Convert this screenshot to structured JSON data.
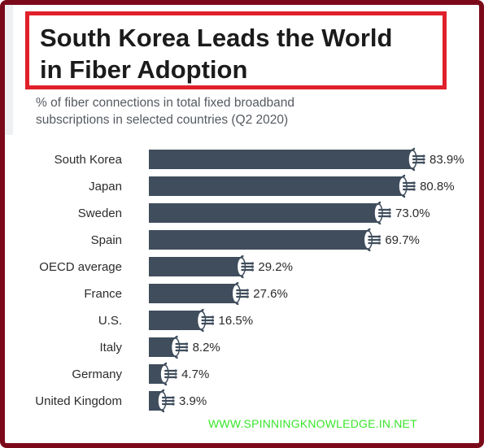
{
  "title": "South Korea Leads the World\nin Fiber Adoption",
  "subtitle": "% of fiber connections in total fixed broadband\nsubscriptions in selected countries (Q2 2020)",
  "footer": "WWW.SPINNINGKNOWLEDGE.IN.NET",
  "colors": {
    "bar": "#3f4d5c",
    "frame": "#7a0a1a",
    "title_border": "#e0202a",
    "footer": "#39e62b"
  },
  "chart_data": {
    "type": "bar",
    "orientation": "horizontal",
    "categories": [
      "South Korea",
      "Japan",
      "Sweden",
      "Spain",
      "OECD average",
      "France",
      "U.S.",
      "Italy",
      "Germany",
      "United Kingdom"
    ],
    "values": [
      83.9,
      80.8,
      73.0,
      69.7,
      29.2,
      27.6,
      16.5,
      8.2,
      4.7,
      3.9
    ],
    "value_labels": [
      "83.9%",
      "80.8%",
      "73.0%",
      "69.7%",
      "29.2%",
      "27.6%",
      "16.5%",
      "8.2%",
      "4.7%",
      "3.9%"
    ],
    "unit": "%",
    "grid": false,
    "legend": "none"
  }
}
